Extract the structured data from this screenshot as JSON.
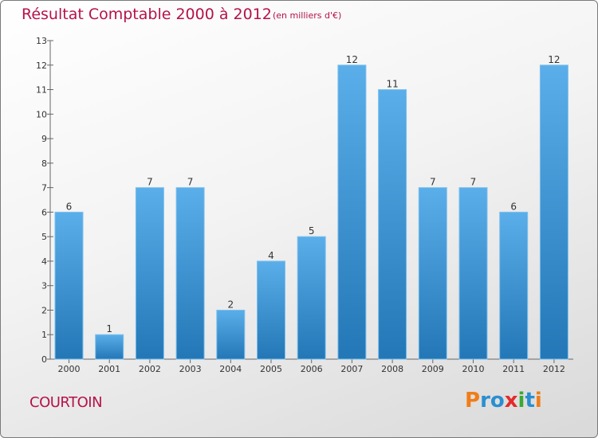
{
  "header": {
    "title": "Résultat Comptable 2000 à 2012",
    "subtitle": "(en milliers d'€)"
  },
  "footer": {
    "commune": "COURTOIN",
    "brand": "Proxiti"
  },
  "colors": {
    "title": "#b5124a",
    "bar_top": "#5aaee9",
    "bar_bottom": "#2377b6",
    "logo_letters": [
      "#f07d19",
      "#2a8fd0",
      "#2a8fd0",
      "#e32b2b",
      "#3aa935",
      "#2a8fd0",
      "#f07d19"
    ]
  },
  "chart_data": {
    "type": "bar",
    "categories": [
      "2000",
      "2001",
      "2002",
      "2003",
      "2004",
      "2005",
      "2006",
      "2007",
      "2008",
      "2009",
      "2010",
      "2011",
      "2012"
    ],
    "values": [
      6,
      1,
      7,
      7,
      2,
      4,
      5,
      12,
      11,
      7,
      7,
      6,
      12
    ],
    "title": "Résultat Comptable 2000 à 2012",
    "subtitle": "(en milliers d'€)",
    "xlabel": "",
    "ylabel": "",
    "ylim": [
      0,
      13
    ],
    "yticks": [
      0,
      1,
      2,
      3,
      4,
      5,
      6,
      7,
      8,
      9,
      10,
      11,
      12,
      13
    ],
    "grid": false,
    "legend": "none"
  }
}
